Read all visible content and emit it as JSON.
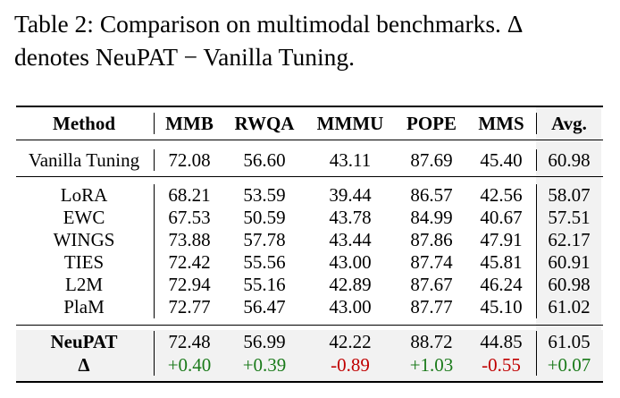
{
  "caption": {
    "line1": "Table 2: Comparison on multimodal benchmarks. Δ",
    "line2": "denotes NeuPAT − Vanilla Tuning."
  },
  "table": {
    "headers": [
      "Method",
      "MMB",
      "RWQA",
      "MMMU",
      "POPE",
      "MMS",
      "Avg."
    ],
    "baseline": {
      "method": "Vanilla Tuning",
      "values": [
        "72.08",
        "56.60",
        "43.11",
        "87.69",
        "45.40",
        "60.98"
      ]
    },
    "methods": [
      {
        "method": "LoRA",
        "values": [
          "68.21",
          "53.59",
          "39.44",
          "86.57",
          "42.56",
          "58.07"
        ]
      },
      {
        "method": "EWC",
        "values": [
          "67.53",
          "50.59",
          "43.78",
          "84.99",
          "40.67",
          "57.51"
        ]
      },
      {
        "method": "WINGS",
        "values": [
          "73.88",
          "57.78",
          "43.44",
          "87.86",
          "47.91",
          "62.17"
        ]
      },
      {
        "method": "TIES",
        "values": [
          "72.42",
          "55.56",
          "43.00",
          "87.74",
          "45.81",
          "60.91"
        ]
      },
      {
        "method": "L2M",
        "values": [
          "72.94",
          "55.16",
          "42.89",
          "87.67",
          "46.24",
          "60.98"
        ]
      },
      {
        "method": "PlaM",
        "values": [
          "72.77",
          "56.47",
          "43.00",
          "87.77",
          "45.10",
          "61.02"
        ]
      }
    ],
    "ours": {
      "method": "NeuPAT",
      "values": [
        "72.48",
        "56.99",
        "42.22",
        "88.72",
        "44.85",
        "61.05"
      ]
    },
    "delta": {
      "method": "Δ",
      "values": [
        "+0.40",
        "+0.39",
        "-0.89",
        "+1.03",
        "-0.55",
        "+0.07"
      ]
    },
    "colors": {
      "positive": "#1a7a1a",
      "negative": "#c00000",
      "highlight": "#f2f2f2"
    }
  }
}
